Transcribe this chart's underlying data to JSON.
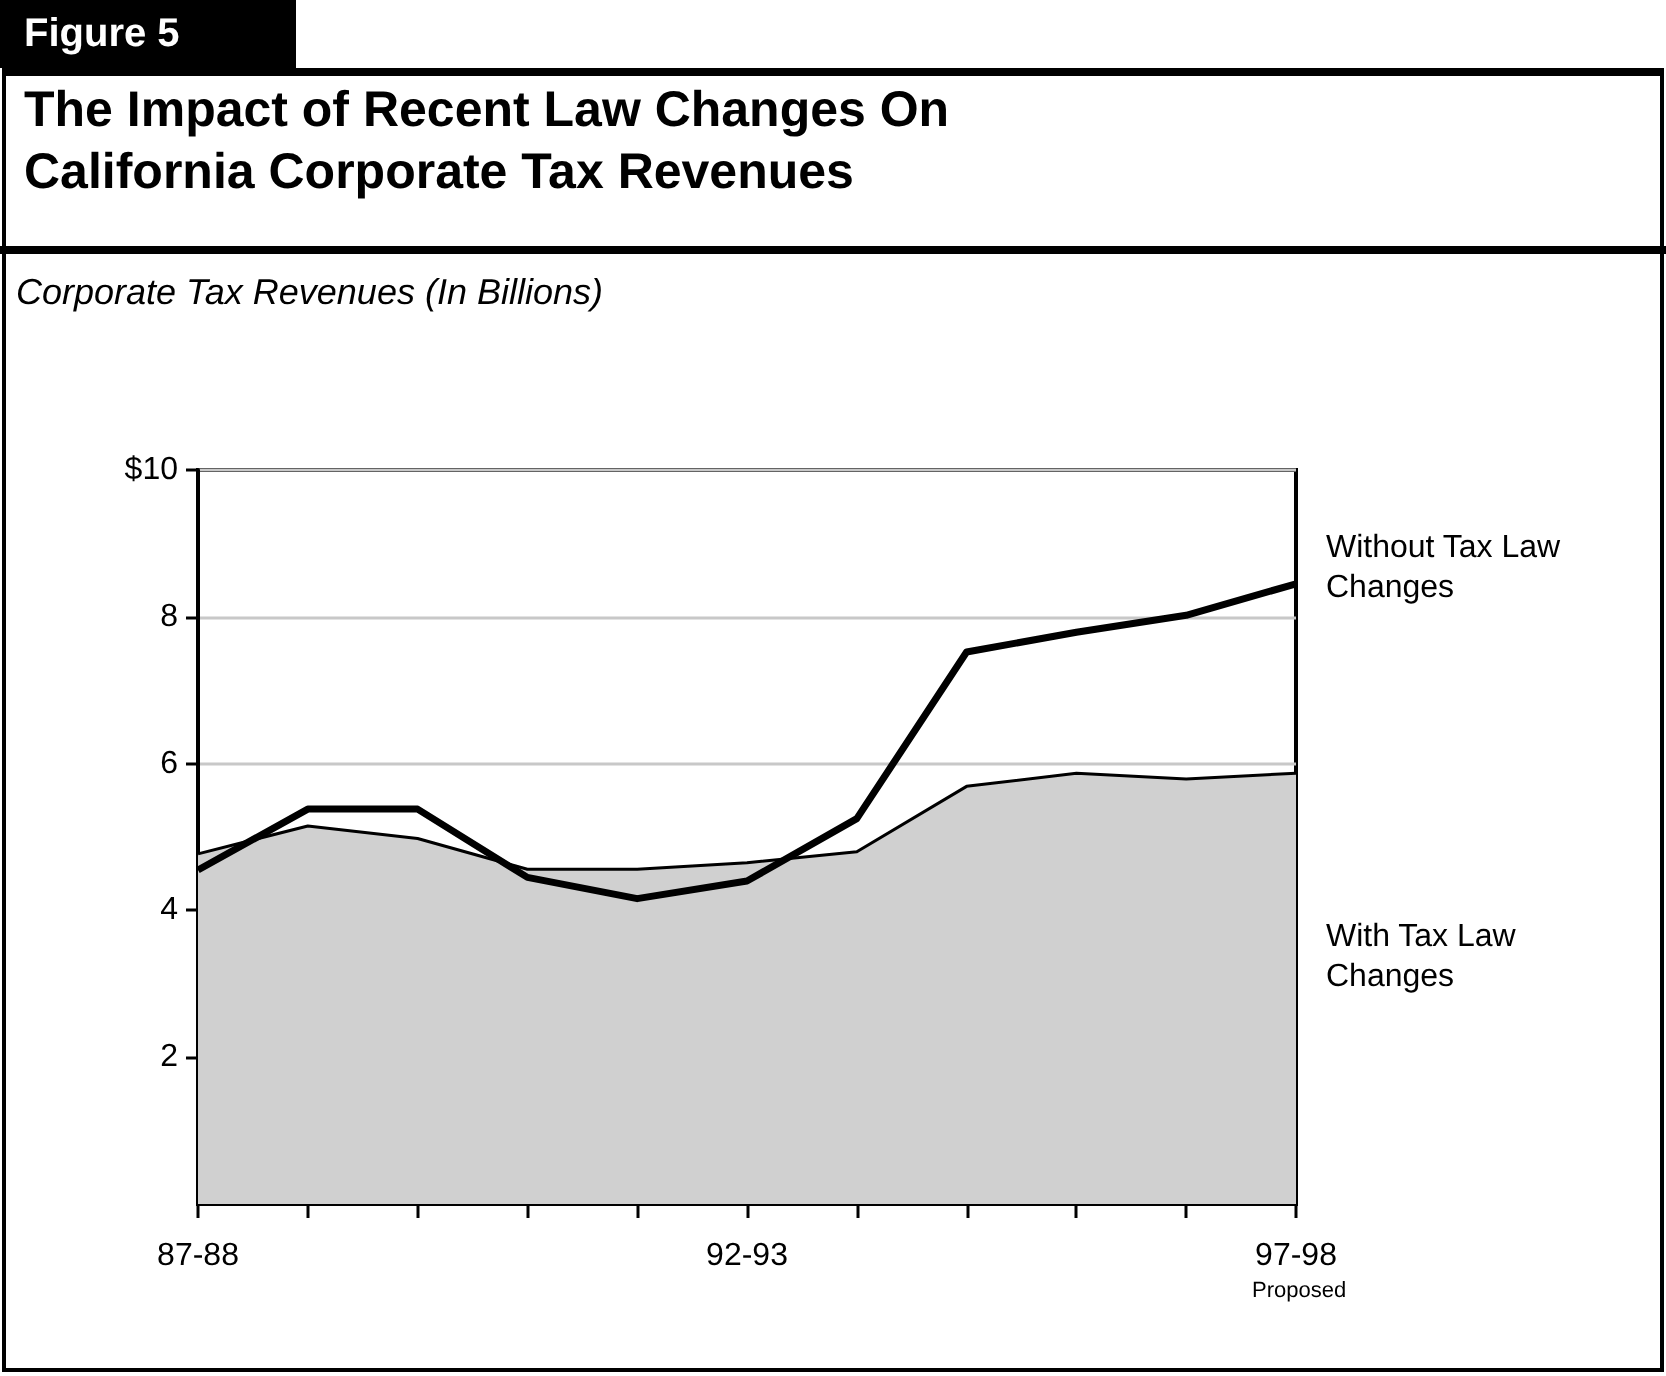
{
  "chart_data": {
    "type": "line",
    "title": "The Impact of Recent Law Changes On California Corporate Tax Revenues",
    "subtitle": "Corporate Tax Revenues (In Billions)",
    "annotations": [
      "Figure 5",
      "Proposed"
    ],
    "categories": [
      "87-88",
      null,
      null,
      null,
      null,
      "92-93",
      null,
      null,
      null,
      null,
      "97-98"
    ],
    "series": [
      {
        "name": "Without Tax Law Changes",
        "type": "line",
        "color": "#000000",
        "values": [
          4.55,
          5.38,
          5.38,
          4.45,
          4.16,
          4.4,
          5.25,
          7.52,
          7.79,
          8.02,
          8.45
        ]
      },
      {
        "name": "With Tax Law Changes",
        "type": "area",
        "color": "#d0d0d0",
        "values": [
          4.77,
          5.15,
          4.98,
          4.56,
          4.56,
          4.65,
          4.8,
          5.69,
          5.87,
          5.79,
          5.87
        ]
      }
    ],
    "ylim": [
      0,
      10
    ],
    "yticks": [
      2,
      4,
      6,
      8,
      {
        "value": 10,
        "label": "$10"
      }
    ],
    "grid": "y",
    "marker": "none",
    "line_style": "solid"
  }
}
